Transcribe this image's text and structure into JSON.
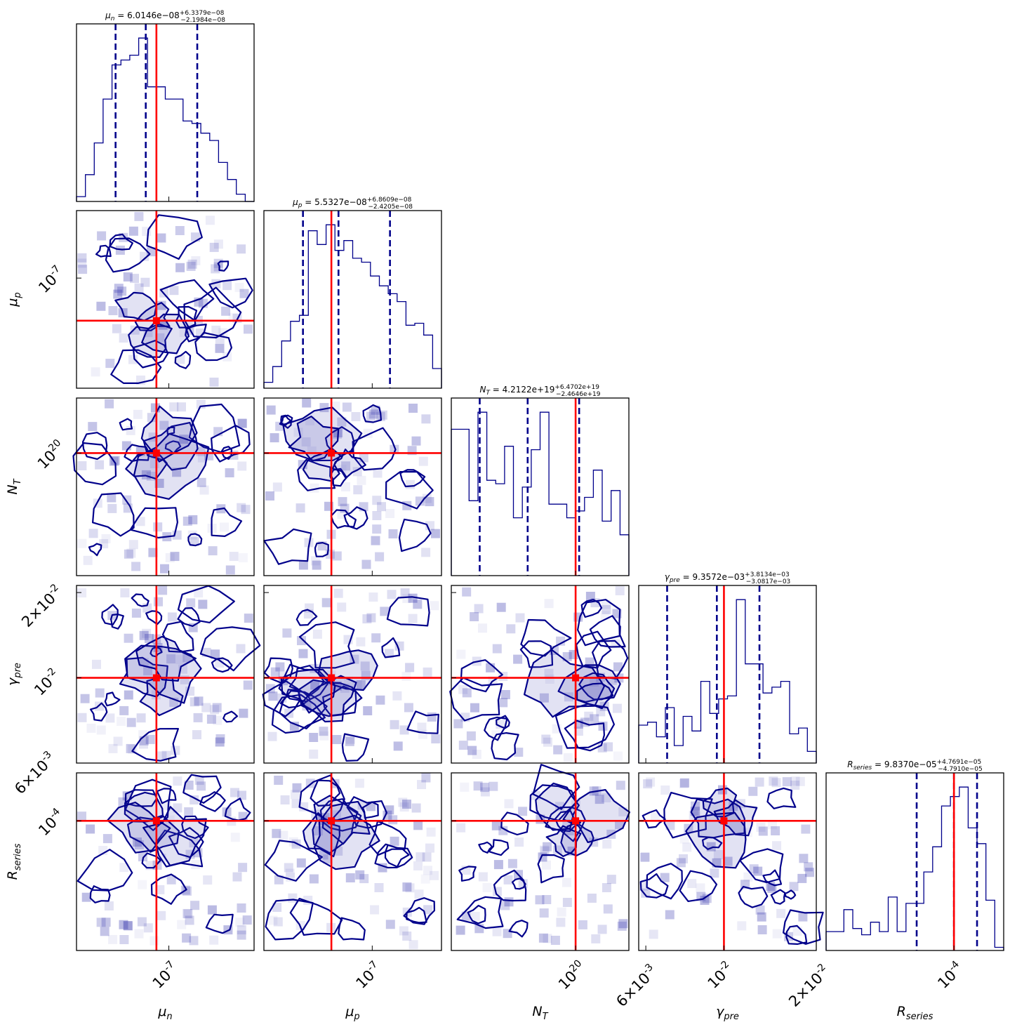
{
  "chart_data": {
    "type": "corner",
    "parameters": [
      {
        "key": "mu_n",
        "symbol": "μ",
        "sub": "n",
        "tick_label": "10^{-7}",
        "scale": "log"
      },
      {
        "key": "mu_p",
        "symbol": "μ",
        "sub": "p",
        "tick_label": "10^{-7}",
        "scale": "log"
      },
      {
        "key": "N_T",
        "symbol": "N",
        "sub": "T",
        "tick_label": "10^{20}",
        "scale": "log"
      },
      {
        "key": "gamma_pre",
        "symbol": "γ",
        "sub": "pre",
        "tick_labels": [
          "6×10^{-3}",
          "10^{-2}",
          "2×10^{-2}"
        ],
        "scale": "log"
      },
      {
        "key": "R_series",
        "symbol": "R",
        "sub": "series",
        "tick_label": "10^{-4}",
        "scale": "log"
      }
    ],
    "titles": [
      {
        "name": "μ",
        "sub": "n",
        "median": "6.0146e−08",
        "plus": "+6.3379e−08",
        "minus": "−2.1984e−08"
      },
      {
        "name": "μ",
        "sub": "p",
        "median": "5.5327e−08",
        "plus": "+6.8609e−08",
        "minus": "−2.4205e−08"
      },
      {
        "name": "N",
        "sub": "T",
        "median": "4.2122e+19",
        "plus": "+6.4702e+19",
        "minus": "−2.4646e+19"
      },
      {
        "name": "γ",
        "sub": "pre",
        "median": "9.3572e−03",
        "plus": "+3.8134e−03",
        "minus": "−3.0817e−03"
      },
      {
        "name": "R",
        "sub": "series",
        "median": "9.8370e−05",
        "plus": "+4.7691e−05",
        "minus": "−4.7910e−05"
      }
    ],
    "truth_values": [
      6.0146e-08,
      5.5327e-08,
      1e+20,
      0.0093572,
      9.837e-05
    ],
    "quantile_lines": [
      [
        0.22,
        0.39,
        0.68
      ],
      [
        0.22,
        0.42,
        0.71
      ],
      [
        0.16,
        0.43,
        0.72
      ],
      [
        0.16,
        0.44,
        0.68
      ],
      [
        0.51,
        0.72,
        0.85
      ]
    ],
    "histograms": [
      [
        2,
        11,
        24,
        42,
        56,
        58,
        60,
        67,
        47,
        47,
        42,
        42,
        33,
        32,
        28,
        25,
        16,
        9,
        3,
        0
      ],
      [
        3,
        11,
        24,
        34,
        37,
        80,
        73,
        83,
        70,
        75,
        66,
        64,
        57,
        52,
        48,
        44,
        32,
        33,
        27,
        10
      ],
      [
        43,
        43,
        22,
        48,
        28,
        27,
        38,
        17,
        26,
        37,
        48,
        21,
        21,
        17,
        19,
        23,
        31,
        16,
        25,
        12
      ],
      [
        13,
        14,
        9,
        19,
        6,
        16,
        11,
        28,
        17,
        22,
        23,
        56,
        34,
        34,
        24,
        26,
        28,
        10,
        12,
        4
      ],
      [
        6,
        6,
        13,
        7,
        5,
        9,
        6,
        17,
        6,
        15,
        15,
        25,
        33,
        46,
        49,
        52,
        39,
        34,
        16,
        1
      ]
    ],
    "colors": {
      "contour": "#00008b",
      "truth": "#ff0000",
      "quantile": "#00008b",
      "density": "#3a3ab0"
    }
  }
}
